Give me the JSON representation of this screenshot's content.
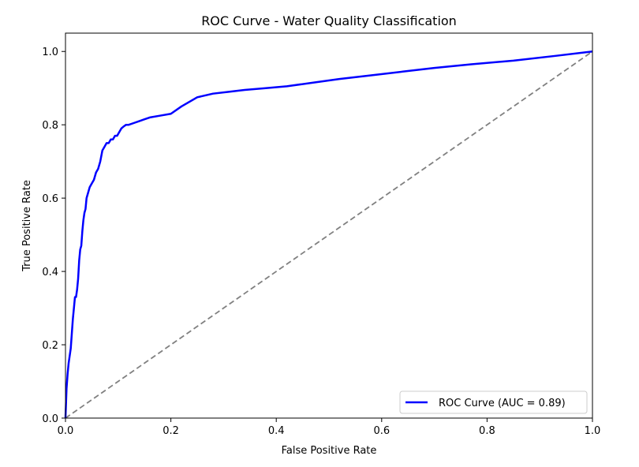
{
  "chart_data": {
    "type": "line",
    "title": "ROC Curve - Water Quality Classification",
    "xlabel": "False Positive Rate",
    "ylabel": "True Positive Rate",
    "xlim": [
      0.0,
      1.0
    ],
    "ylim": [
      0.0,
      1.05
    ],
    "xticks": [
      "0.0",
      "0.2",
      "0.4",
      "0.6",
      "0.8",
      "1.0"
    ],
    "yticks": [
      "0.0",
      "0.2",
      "0.4",
      "0.6",
      "0.8",
      "1.0"
    ],
    "grid": false,
    "legend_position": "lower-right",
    "series": [
      {
        "name": "ROC Curve (AUC = 0.89)",
        "color": "#0000ff",
        "line_style": "solid",
        "x": [
          0.0,
          0.002,
          0.004,
          0.006,
          0.008,
          0.01,
          0.012,
          0.014,
          0.016,
          0.018,
          0.02,
          0.022,
          0.024,
          0.026,
          0.028,
          0.03,
          0.032,
          0.034,
          0.036,
          0.038,
          0.04,
          0.042,
          0.046,
          0.05,
          0.054,
          0.058,
          0.062,
          0.066,
          0.07,
          0.074,
          0.078,
          0.082,
          0.086,
          0.09,
          0.094,
          0.098,
          0.102,
          0.106,
          0.11,
          0.115,
          0.12,
          0.13,
          0.14,
          0.15,
          0.16,
          0.18,
          0.2,
          0.22,
          0.25,
          0.28,
          0.31,
          0.34,
          0.38,
          0.42,
          0.47,
          0.52,
          0.58,
          0.64,
          0.7,
          0.77,
          0.85,
          0.93,
          1.0
        ],
        "y": [
          0.0,
          0.08,
          0.12,
          0.15,
          0.17,
          0.19,
          0.23,
          0.27,
          0.3,
          0.33,
          0.33,
          0.35,
          0.38,
          0.43,
          0.46,
          0.47,
          0.51,
          0.54,
          0.56,
          0.57,
          0.6,
          0.61,
          0.63,
          0.64,
          0.65,
          0.67,
          0.68,
          0.7,
          0.73,
          0.74,
          0.75,
          0.75,
          0.76,
          0.76,
          0.77,
          0.77,
          0.78,
          0.79,
          0.795,
          0.8,
          0.8,
          0.805,
          0.81,
          0.815,
          0.82,
          0.825,
          0.83,
          0.85,
          0.875,
          0.885,
          0.89,
          0.895,
          0.9,
          0.905,
          0.915,
          0.925,
          0.935,
          0.945,
          0.955,
          0.965,
          0.975,
          0.988,
          1.0
        ]
      },
      {
        "name": "",
        "color": "#808080",
        "line_style": "dashed",
        "x": [
          0.0,
          1.0
        ],
        "y": [
          0.0,
          1.0
        ]
      }
    ]
  }
}
